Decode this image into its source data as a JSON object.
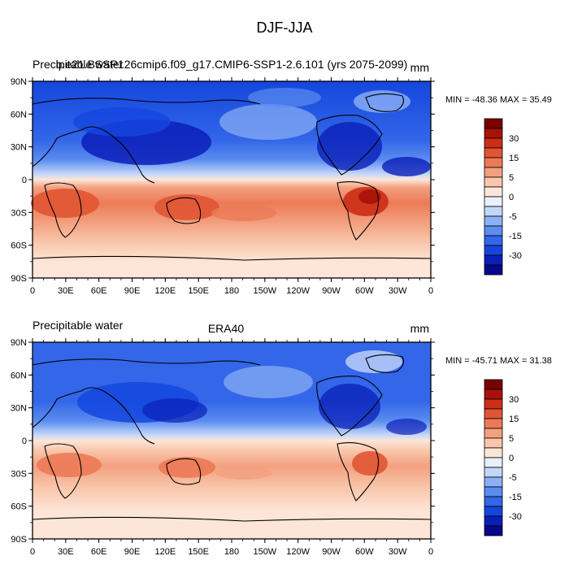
{
  "figure": {
    "title": "DJF-JJA"
  },
  "colorbar": {
    "colors": [
      "#08088a",
      "#0a1fb8",
      "#1446de",
      "#3366e8",
      "#5b8cf0",
      "#8cb0f5",
      "#c3d6fa",
      "#e8f0fd",
      "#fde6d8",
      "#f9c6ab",
      "#f3a07f",
      "#ec7a57",
      "#e05533",
      "#cc2e16",
      "#a8120a",
      "#7a0000"
    ],
    "tick_labels": [
      "-30",
      "-15",
      "-5",
      "0",
      "5",
      "15",
      "30"
    ]
  },
  "map_axes": {
    "lat_labels": [
      "90N",
      "60N",
      "30N",
      "0",
      "30S",
      "60S",
      "90S"
    ],
    "lon_labels": [
      "0",
      "30E",
      "60E",
      "90E",
      "120E",
      "150E",
      "180",
      "150W",
      "120W",
      "90W",
      "60W",
      "30W",
      "0"
    ]
  },
  "panels": [
    {
      "left_title": "Precipitable water",
      "center_title": "b.e21.BSSP126cmip6.f09_g17.CMIP6-SSP1-2.6.101 (yrs 2075-2099)",
      "units": "mm",
      "stats": "MIN = -48.36 MAX =  35.49"
    },
    {
      "left_title": "Precipitable water",
      "center_title": "ERA40",
      "units": "mm",
      "stats": "MIN = -45.71 MAX =  31.38"
    }
  ]
}
